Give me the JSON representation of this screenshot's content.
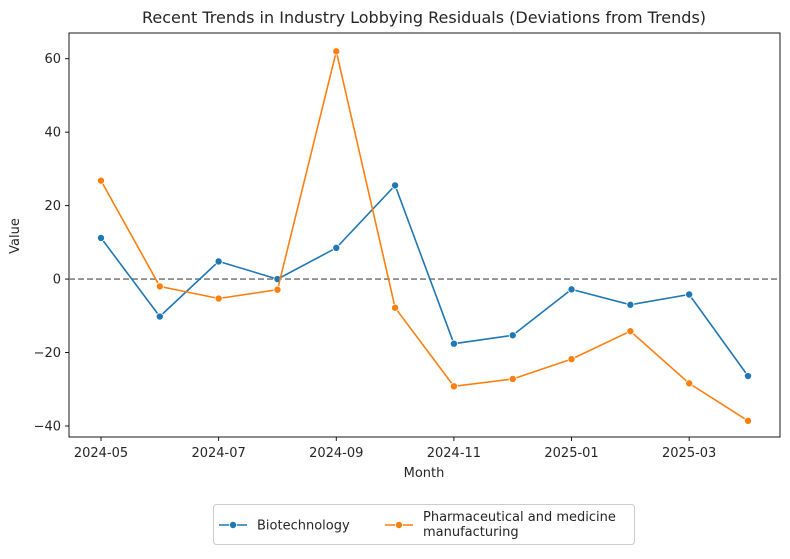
{
  "chart_data": {
    "type": "line",
    "title": "Recent Trends in Industry Lobbying Residuals (Deviations from Trends)",
    "xlabel": "Month",
    "ylabel": "Value",
    "x": [
      "2024-05",
      "2024-06",
      "2024-07",
      "2024-08",
      "2024-09",
      "2024-10",
      "2024-11",
      "2024-12",
      "2025-01",
      "2025-02",
      "2025-03",
      "2025-04"
    ],
    "x_tick_labels": [
      "2024-05",
      "2024-07",
      "2024-09",
      "2024-11",
      "2025-01",
      "2025-03"
    ],
    "y_ticks": [
      -40,
      -20,
      0,
      20,
      40,
      60
    ],
    "y_tick_labels": [
      "−40",
      "−20",
      "0",
      "20",
      "40",
      "60"
    ],
    "ylim": [
      -43,
      67
    ],
    "reference_line": {
      "y": 0,
      "style": "dashed",
      "color": "#808080"
    },
    "grid": false,
    "legend_position": "bottom-center-outside",
    "series": [
      {
        "name": "Biotechnology",
        "color": "#1f77b4",
        "values": [
          11.2,
          -10.2,
          4.8,
          0.0,
          8.5,
          25.5,
          -17.6,
          -15.3,
          -2.8,
          -7.0,
          -4.2,
          -26.4
        ]
      },
      {
        "name": "Pharmaceutical and medicine manufacturing",
        "label_lines": [
          "Pharmaceutical and medicine",
          "manufacturing"
        ],
        "color": "#ff7f0e",
        "values": [
          26.8,
          -2.0,
          -5.3,
          -2.9,
          62.0,
          -7.8,
          -29.2,
          -27.2,
          -21.8,
          -14.2,
          -28.4,
          -38.6
        ]
      }
    ]
  }
}
